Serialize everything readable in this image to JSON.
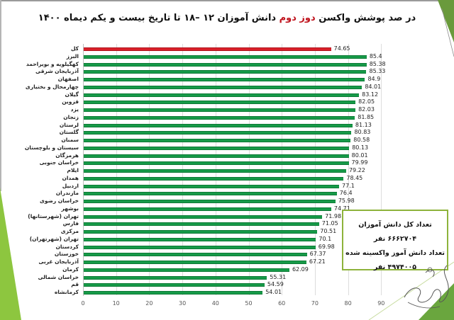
{
  "title": {
    "part1": "در صد پوشش واکسن ",
    "highlight": "دوز دوم",
    "part2": " دانش آموزان ۱۲ –۱۸ تا تاریخ بیست و یکم دیماه ۱۴۰۰"
  },
  "info_box": {
    "line1": "تعداد کل دانش آموزان ۶۶۶۲۷۰۴ نفر",
    "line2": "تعداد دانش آموز واکسینه شده",
    "line3": "۴۹۷۴۰۰۵ نفر"
  },
  "colors": {
    "total_bar": "#d9202a",
    "province_bar": "#169a48",
    "accent_green": "#8dc63f"
  },
  "chart_data": {
    "type": "bar",
    "orientation": "horizontal",
    "title": "در صد پوشش واکسن دوز دوم دانش آموزان ۱۲ –۱۸ تا تاریخ بیست و یکم دیماه ۱۴۰۰",
    "xlabel": "",
    "ylabel": "",
    "xlim": [
      0,
      90
    ],
    "ticks": [
      "0",
      "10",
      "20",
      "30",
      "40",
      "50",
      "60",
      "70",
      "80",
      "90"
    ],
    "grid": true,
    "legend": null,
    "categories": [
      "کل",
      "البرز",
      "کهگیلویه و بویراحمد",
      "آذربایجان شرقی",
      "اصفهان",
      "چهارمحال و بختیاری",
      "گیلان",
      "قزوین",
      "یزد",
      "زنجان",
      "لرستان",
      "گلستان",
      "سمنان",
      "سیستان و بلوچستان",
      "هرمزگان",
      "خراسان جنوبی",
      "ایلام",
      "همدان",
      "اردبیل",
      "مازندران",
      "خراسان رضوی",
      "بوشهر",
      "تهران (شهرستانها)",
      "فارس",
      "مرکزی",
      "تهران (شهرتهران)",
      "کردستان",
      "خوزستان",
      "آذربایجان غربی",
      "کرمان",
      "خراسان شمالی",
      "قم",
      "کرمانشاه"
    ],
    "values": [
      74.65,
      85.4,
      85.38,
      85.33,
      84.9,
      84.01,
      83.12,
      82.05,
      82.03,
      81.85,
      81.13,
      80.83,
      80.58,
      80.13,
      80.01,
      79.99,
      79.22,
      78.45,
      77.1,
      76.4,
      75.98,
      74.71,
      71.98,
      71.05,
      70.51,
      70.1,
      69.98,
      67.37,
      67.21,
      62.09,
      55.31,
      54.59,
      54.01
    ],
    "value_labels": [
      "74.65",
      "85.4",
      "85.38",
      "85.33",
      "84.9",
      "84.01",
      "83.12",
      "82.05",
      "82.03",
      "81.85",
      "81.13",
      "80.83",
      "80.58",
      "80.13",
      "80.01",
      "79.99",
      "79.22",
      "78.45",
      "77.1",
      "76.4",
      "75.98",
      "74.71",
      "71.98",
      "71.05",
      "70.51",
      "70.1",
      "69.98",
      "67.37",
      "67.21",
      "62.09",
      "55.31",
      "54.59",
      "54.01"
    ],
    "highlight_index": 0
  }
}
